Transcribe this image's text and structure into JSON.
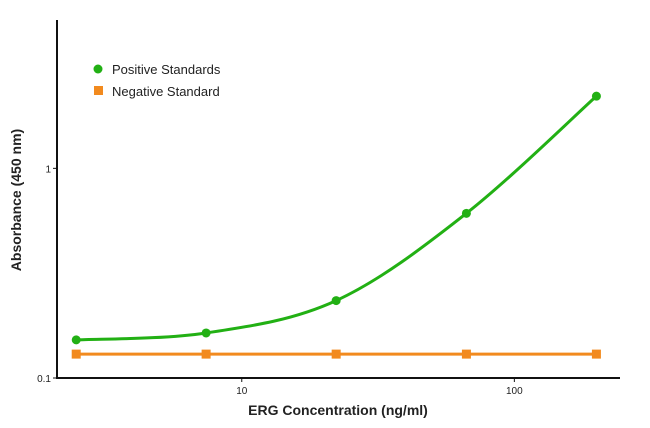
{
  "chart_data": {
    "type": "line",
    "title": "",
    "xlabel": "ERG Concentration (ng/ml)",
    "ylabel": "Absorbance (450 nm)",
    "xscale": "log",
    "yscale": "log",
    "xlim": [
      2.1,
      240
    ],
    "ylim": [
      0.1,
      5.1
    ],
    "xticks": [
      {
        "value": 10,
        "label": "10"
      },
      {
        "value": 100,
        "label": "100"
      }
    ],
    "yticks": [
      {
        "value": 0.1,
        "label": "0.1"
      },
      {
        "value": 1,
        "label": "1"
      }
    ],
    "grid": false,
    "legend_position": "top-left",
    "series": [
      {
        "name": "Positive Standards",
        "color": "#22b014",
        "marker": "circle",
        "smooth": true,
        "x": [
          2.47,
          7.4,
          22.2,
          66.7,
          200
        ],
        "y": [
          0.152,
          0.164,
          0.234,
          0.61,
          2.21
        ]
      },
      {
        "name": "Negative Standard",
        "color": "#f28a1e",
        "marker": "square",
        "smooth": false,
        "x": [
          2.47,
          7.4,
          22.2,
          66.7,
          200
        ],
        "y": [
          0.13,
          0.13,
          0.13,
          0.13,
          0.13
        ]
      }
    ]
  }
}
